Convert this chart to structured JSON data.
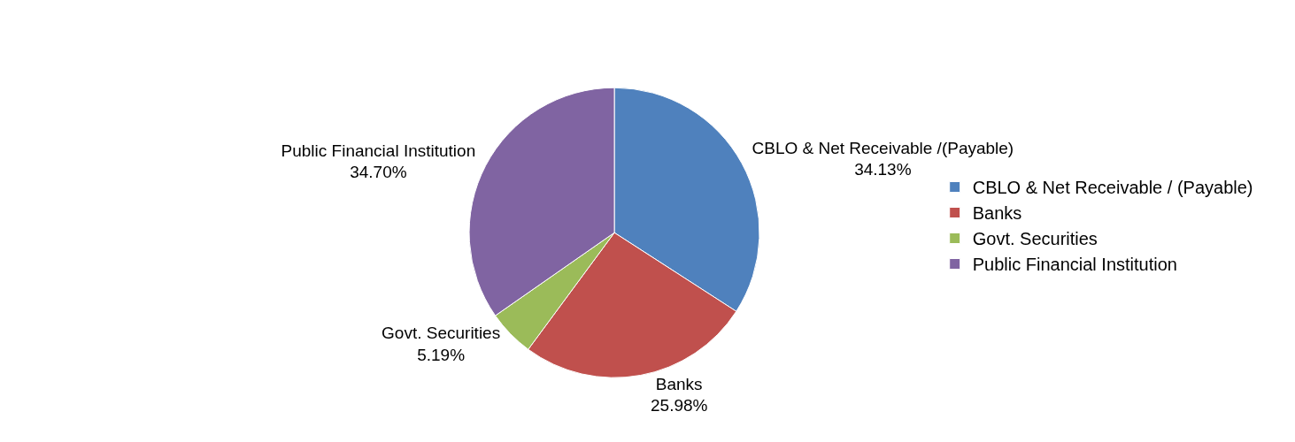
{
  "chart_data": {
    "type": "pie",
    "categories": [
      "CBLO & Net Receivable / (Payable)",
      "Banks",
      "Govt. Securities",
      "Public Financial Institution"
    ],
    "values": [
      34.13,
      25.98,
      5.19,
      34.7
    ],
    "colors": [
      "#4f81bd",
      "#c0504d",
      "#9bbb59",
      "#8064a2"
    ],
    "value_labels": [
      "CBLO & Net Receivable /(Payable)\n34.13%",
      "Banks\n25.98%",
      "Govt. Securities\n5.19%",
      "Public Financial Institution\n34.70%"
    ],
    "legend": "right"
  }
}
